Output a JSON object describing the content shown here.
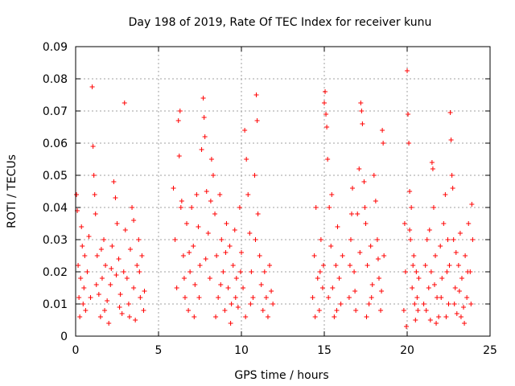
{
  "chart_data": {
    "type": "scatter",
    "title": "Day 198 of 2019, Rate Of TEC Index for receiver kunu",
    "xlabel": "GPS time / hours",
    "ylabel": "ROTI / TECUs",
    "xlim": [
      0,
      25
    ],
    "ylim": [
      0,
      0.09
    ],
    "xticks": [
      0,
      5,
      10,
      15,
      20,
      25
    ],
    "xtick_labels": [
      "0",
      "5",
      "10",
      "15",
      "20",
      "25"
    ],
    "yticks": [
      0,
      0.01,
      0.02,
      0.03,
      0.04,
      0.05,
      0.06,
      0.07,
      0.08,
      0.09
    ],
    "ytick_labels": [
      "0",
      "0.01",
      "0.02",
      "0.03",
      "0.04",
      "0.05",
      "0.06",
      "0.07",
      "0.08",
      "0.09"
    ],
    "grid": true,
    "marker": "+",
    "color": "#ff0000",
    "series": [
      {
        "name": "ROTI",
        "points": [
          [
            0.05,
            0.044
          ],
          [
            0.1,
            0.039
          ],
          [
            0.15,
            0.022
          ],
          [
            0.2,
            0.012
          ],
          [
            0.25,
            0.006
          ],
          [
            0.3,
            0.018
          ],
          [
            0.4,
            0.028
          ],
          [
            0.5,
            0.015
          ],
          [
            0.6,
            0.008
          ],
          [
            0.7,
            0.02
          ],
          [
            0.8,
            0.031
          ],
          [
            0.9,
            0.012
          ],
          [
            1.0,
            0.0775
          ],
          [
            1.05,
            0.059
          ],
          [
            1.1,
            0.05
          ],
          [
            1.15,
            0.044
          ],
          [
            1.2,
            0.038
          ],
          [
            1.3,
            0.025
          ],
          [
            1.4,
            0.013
          ],
          [
            1.5,
            0.006
          ],
          [
            1.6,
            0.018
          ],
          [
            1.7,
            0.03
          ],
          [
            1.8,
            0.022
          ],
          [
            1.9,
            0.011
          ],
          [
            2.0,
            0.004
          ],
          [
            2.1,
            0.016
          ],
          [
            2.2,
            0.028
          ],
          [
            2.3,
            0.048
          ],
          [
            2.4,
            0.043
          ],
          [
            2.5,
            0.035
          ],
          [
            2.6,
            0.024
          ],
          [
            2.7,
            0.013
          ],
          [
            2.8,
            0.007
          ],
          [
            2.9,
            0.02
          ],
          [
            2.95,
            0.0725
          ],
          [
            3.0,
            0.033
          ],
          [
            3.1,
            0.018
          ],
          [
            3.2,
            0.01
          ],
          [
            3.3,
            0.027
          ],
          [
            3.4,
            0.04
          ],
          [
            3.5,
            0.015
          ],
          [
            3.6,
            0.005
          ],
          [
            3.7,
            0.022
          ],
          [
            3.8,
            0.03
          ],
          [
            3.9,
            0.012
          ],
          [
            4.0,
            0.025
          ],
          [
            4.1,
            0.008
          ],
          [
            4.15,
            0.014
          ],
          [
            3.5,
            0.036
          ],
          [
            0.45,
            0.01
          ],
          [
            0.35,
            0.034
          ],
          [
            1.25,
            0.016
          ],
          [
            1.75,
            0.008
          ],
          [
            2.15,
            0.021
          ],
          [
            2.65,
            0.009
          ],
          [
            3.25,
            0.006
          ],
          [
            0.55,
            0.025
          ],
          [
            1.55,
            0.027
          ],
          [
            2.45,
            0.019
          ],
          [
            3.85,
            0.02
          ],
          [
            5.9,
            0.046
          ],
          [
            6.0,
            0.03
          ],
          [
            6.1,
            0.015
          ],
          [
            6.2,
            0.067
          ],
          [
            6.25,
            0.056
          ],
          [
            6.3,
            0.07
          ],
          [
            6.4,
            0.042
          ],
          [
            6.5,
            0.025
          ],
          [
            6.6,
            0.012
          ],
          [
            6.7,
            0.035
          ],
          [
            6.8,
            0.008
          ],
          [
            6.9,
            0.02
          ],
          [
            7.0,
            0.04
          ],
          [
            7.1,
            0.028
          ],
          [
            7.2,
            0.016
          ],
          [
            7.3,
            0.044
          ],
          [
            7.4,
            0.034
          ],
          [
            7.5,
            0.022
          ],
          [
            7.6,
            0.058
          ],
          [
            7.7,
            0.074
          ],
          [
            7.75,
            0.068
          ],
          [
            7.8,
            0.062
          ],
          [
            7.9,
            0.045
          ],
          [
            8.0,
            0.032
          ],
          [
            8.1,
            0.018
          ],
          [
            8.2,
            0.055
          ],
          [
            8.3,
            0.05
          ],
          [
            8.4,
            0.038
          ],
          [
            8.5,
            0.025
          ],
          [
            8.6,
            0.012
          ],
          [
            8.7,
            0.044
          ],
          [
            8.8,
            0.03
          ],
          [
            8.9,
            0.02
          ],
          [
            9.0,
            0.008
          ],
          [
            9.1,
            0.035
          ],
          [
            9.2,
            0.015
          ],
          [
            9.3,
            0.028
          ],
          [
            9.4,
            0.01
          ],
          [
            9.5,
            0.022
          ],
          [
            9.6,
            0.033
          ],
          [
            9.7,
            0.018
          ],
          [
            9.8,
            0.009
          ],
          [
            9.9,
            0.04
          ],
          [
            10.0,
            0.026
          ],
          [
            10.1,
            0.015
          ],
          [
            10.2,
            0.064
          ],
          [
            10.3,
            0.055
          ],
          [
            10.4,
            0.044
          ],
          [
            10.5,
            0.032
          ],
          [
            10.6,
            0.02
          ],
          [
            10.7,
            0.012
          ],
          [
            10.8,
            0.05
          ],
          [
            10.9,
            0.075
          ],
          [
            10.95,
            0.067
          ],
          [
            11.0,
            0.038
          ],
          [
            11.1,
            0.025
          ],
          [
            11.2,
            0.016
          ],
          [
            11.3,
            0.008
          ],
          [
            11.4,
            0.02
          ],
          [
            11.5,
            0.012
          ],
          [
            11.6,
            0.006
          ],
          [
            11.7,
            0.022
          ],
          [
            11.8,
            0.014
          ],
          [
            11.9,
            0.01
          ],
          [
            6.35,
            0.04
          ],
          [
            6.55,
            0.018
          ],
          [
            6.85,
            0.026
          ],
          [
            7.15,
            0.006
          ],
          [
            7.45,
            0.012
          ],
          [
            7.85,
            0.024
          ],
          [
            8.15,
            0.042
          ],
          [
            8.45,
            0.006
          ],
          [
            8.75,
            0.016
          ],
          [
            9.05,
            0.026
          ],
          [
            9.35,
            0.004
          ],
          [
            9.65,
            0.012
          ],
          [
            9.95,
            0.02
          ],
          [
            10.25,
            0.006
          ],
          [
            10.55,
            0.01
          ],
          [
            10.85,
            0.03
          ],
          [
            14.3,
            0.012
          ],
          [
            14.4,
            0.025
          ],
          [
            14.5,
            0.04
          ],
          [
            14.6,
            0.018
          ],
          [
            14.7,
            0.008
          ],
          [
            14.8,
            0.03
          ],
          [
            14.9,
            0.015
          ],
          [
            15.0,
            0.0725
          ],
          [
            15.05,
            0.076
          ],
          [
            15.1,
            0.069
          ],
          [
            15.15,
            0.065
          ],
          [
            15.2,
            0.055
          ],
          [
            15.3,
            0.04
          ],
          [
            15.4,
            0.028
          ],
          [
            15.5,
            0.015
          ],
          [
            15.6,
            0.006
          ],
          [
            15.7,
            0.022
          ],
          [
            15.8,
            0.034
          ],
          [
            15.9,
            0.018
          ],
          [
            16.0,
            0.01
          ],
          [
            16.1,
            0.025
          ],
          [
            16.5,
            0.012
          ],
          [
            16.6,
            0.03
          ],
          [
            16.7,
            0.046
          ],
          [
            16.8,
            0.02
          ],
          [
            16.9,
            0.008
          ],
          [
            17.0,
            0.038
          ],
          [
            17.1,
            0.052
          ],
          [
            17.2,
            0.0725
          ],
          [
            17.25,
            0.07
          ],
          [
            17.3,
            0.066
          ],
          [
            17.4,
            0.048
          ],
          [
            17.5,
            0.035
          ],
          [
            17.6,
            0.022
          ],
          [
            17.7,
            0.01
          ],
          [
            17.8,
            0.028
          ],
          [
            17.9,
            0.016
          ],
          [
            18.0,
            0.05
          ],
          [
            18.1,
            0.042
          ],
          [
            18.2,
            0.03
          ],
          [
            18.3,
            0.018
          ],
          [
            18.4,
            0.008
          ],
          [
            18.5,
            0.064
          ],
          [
            18.55,
            0.06
          ],
          [
            18.6,
            0.025
          ],
          [
            14.45,
            0.006
          ],
          [
            14.75,
            0.02
          ],
          [
            15.25,
            0.012
          ],
          [
            15.75,
            0.008
          ],
          [
            16.55,
            0.022
          ],
          [
            16.85,
            0.014
          ],
          [
            17.15,
            0.026
          ],
          [
            17.55,
            0.006
          ],
          [
            17.85,
            0.012
          ],
          [
            18.25,
            0.024
          ],
          [
            18.45,
            0.014
          ],
          [
            16.65,
            0.038
          ],
          [
            17.45,
            0.04
          ],
          [
            15.45,
            0.044
          ],
          [
            14.95,
            0.022
          ],
          [
            19.8,
            0.008
          ],
          [
            19.9,
            0.02
          ],
          [
            20.0,
            0.0825
          ],
          [
            20.05,
            0.069
          ],
          [
            20.1,
            0.06
          ],
          [
            20.15,
            0.045
          ],
          [
            20.2,
            0.03
          ],
          [
            20.3,
            0.015
          ],
          [
            20.4,
            0.025
          ],
          [
            20.5,
            0.005
          ],
          [
            20.6,
            0.012
          ],
          [
            20.7,
            0.018
          ],
          [
            19.85,
            0.035
          ],
          [
            20.25,
            0.04
          ],
          [
            20.35,
            0.022
          ],
          [
            20.45,
            0.01
          ],
          [
            19.95,
            0.003
          ],
          [
            20.55,
            0.02
          ],
          [
            20.15,
            0.033
          ],
          [
            20.65,
            0.008
          ],
          [
            21.0,
            0.01
          ],
          [
            21.1,
            0.022
          ],
          [
            21.2,
            0.03
          ],
          [
            21.3,
            0.015
          ],
          [
            21.4,
            0.005
          ],
          [
            21.5,
            0.054
          ],
          [
            21.55,
            0.052
          ],
          [
            21.6,
            0.04
          ],
          [
            21.7,
            0.025
          ],
          [
            21.8,
            0.012
          ],
          [
            21.9,
            0.006
          ],
          [
            22.0,
            0.028
          ],
          [
            22.1,
            0.018
          ],
          [
            22.2,
            0.035
          ],
          [
            22.3,
            0.044
          ],
          [
            22.4,
            0.02
          ],
          [
            22.5,
            0.01
          ],
          [
            22.6,
            0.0695
          ],
          [
            22.65,
            0.061
          ],
          [
            22.7,
            0.05
          ],
          [
            22.75,
            0.046
          ],
          [
            22.8,
            0.03
          ],
          [
            22.9,
            0.015
          ],
          [
            23.0,
            0.007
          ],
          [
            23.1,
            0.022
          ],
          [
            23.2,
            0.032
          ],
          [
            23.3,
            0.018
          ],
          [
            23.4,
            0.009
          ],
          [
            23.5,
            0.025
          ],
          [
            23.6,
            0.012
          ],
          [
            23.7,
            0.035
          ],
          [
            23.8,
            0.02
          ],
          [
            23.9,
            0.041
          ],
          [
            23.95,
            0.03
          ],
          [
            21.15,
            0.008
          ],
          [
            21.45,
            0.02
          ],
          [
            21.75,
            0.004
          ],
          [
            22.05,
            0.012
          ],
          [
            22.35,
            0.006
          ],
          [
            22.55,
            0.022
          ],
          [
            22.85,
            0.01
          ],
          [
            23.15,
            0.014
          ],
          [
            23.45,
            0.004
          ],
          [
            23.65,
            0.02
          ],
          [
            23.85,
            0.01
          ],
          [
            21.35,
            0.033
          ],
          [
            22.95,
            0.026
          ],
          [
            23.25,
            0.006
          ],
          [
            21.65,
            0.016
          ],
          [
            22.45,
            0.03
          ]
        ]
      }
    ]
  }
}
